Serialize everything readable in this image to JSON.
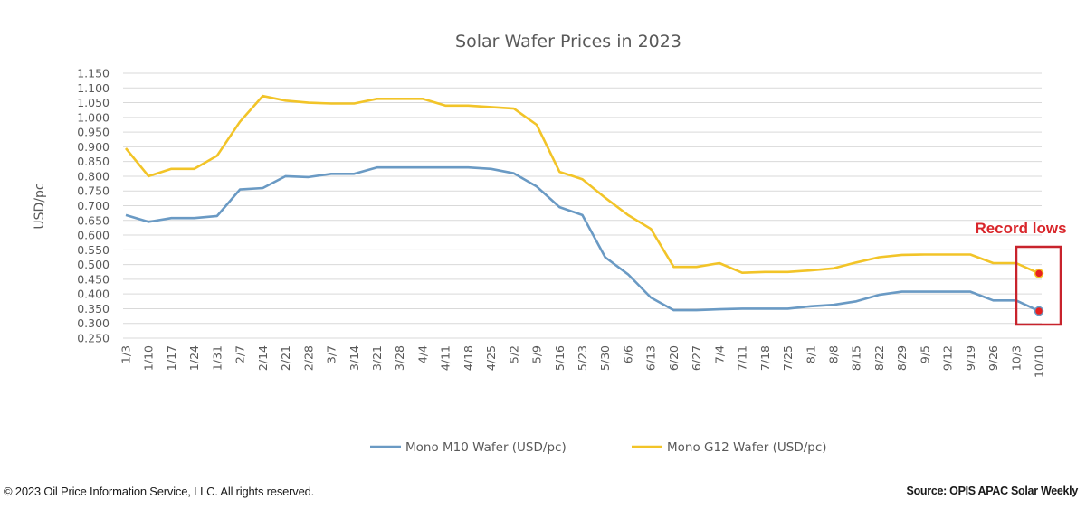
{
  "chart_data": {
    "type": "line",
    "title": "Solar Wafer Prices in 2023",
    "xlabel": "",
    "ylabel": "USD/pc",
    "ylim": [
      0.25,
      1.15
    ],
    "ytick_step": 0.05,
    "grid": true,
    "legend_position": "bottom",
    "categories": [
      "1/3",
      "1/10",
      "1/17",
      "1/24",
      "1/31",
      "2/7",
      "2/14",
      "2/21",
      "2/28",
      "3/7",
      "3/14",
      "3/21",
      "3/28",
      "4/4",
      "4/11",
      "4/18",
      "4/25",
      "5/2",
      "5/9",
      "5/16",
      "5/23",
      "5/30",
      "6/6",
      "6/13",
      "6/20",
      "6/27",
      "7/4",
      "7/11",
      "7/18",
      "7/25",
      "8/1",
      "8/8",
      "8/15",
      "8/22",
      "8/29",
      "9/5",
      "9/12",
      "9/19",
      "9/26",
      "10/3",
      "10/10"
    ],
    "series": [
      {
        "name": "Mono M10 Wafer (USD/pc)",
        "color": "#6a9ac4",
        "values": [
          0.668,
          0.645,
          0.658,
          0.658,
          0.665,
          0.755,
          0.76,
          0.8,
          0.797,
          0.808,
          0.808,
          0.83,
          0.83,
          0.83,
          0.83,
          0.83,
          0.825,
          0.81,
          0.765,
          0.695,
          0.668,
          0.525,
          0.467,
          0.388,
          0.345,
          0.345,
          0.348,
          0.35,
          0.35,
          0.35,
          0.358,
          0.363,
          0.375,
          0.397,
          0.408,
          0.408,
          0.408,
          0.408,
          0.378,
          0.378,
          0.342
        ]
      },
      {
        "name": "Mono G12 Wafer (USD/pc)",
        "color": "#f2c428",
        "values": [
          0.895,
          0.8,
          0.825,
          0.825,
          0.87,
          0.985,
          1.073,
          1.057,
          1.05,
          1.047,
          1.047,
          1.063,
          1.063,
          1.063,
          1.04,
          1.04,
          1.035,
          1.03,
          0.975,
          0.815,
          0.79,
          0.727,
          0.668,
          0.621,
          0.492,
          0.492,
          0.505,
          0.472,
          0.475,
          0.475,
          0.48,
          0.487,
          0.507,
          0.525,
          0.533,
          0.534,
          0.534,
          0.534,
          0.505,
          0.505,
          0.47
        ]
      }
    ],
    "annotations": [
      {
        "text": "Record lows",
        "color": "#d9262b",
        "highlight_category": "10/10",
        "marker_color": "#e8201f"
      }
    ]
  },
  "footer": {
    "copyright": "© 2023 Oil Price Information Service, LLC. All rights reserved.",
    "source": "Source: OPIS APAC Solar Weekly"
  }
}
